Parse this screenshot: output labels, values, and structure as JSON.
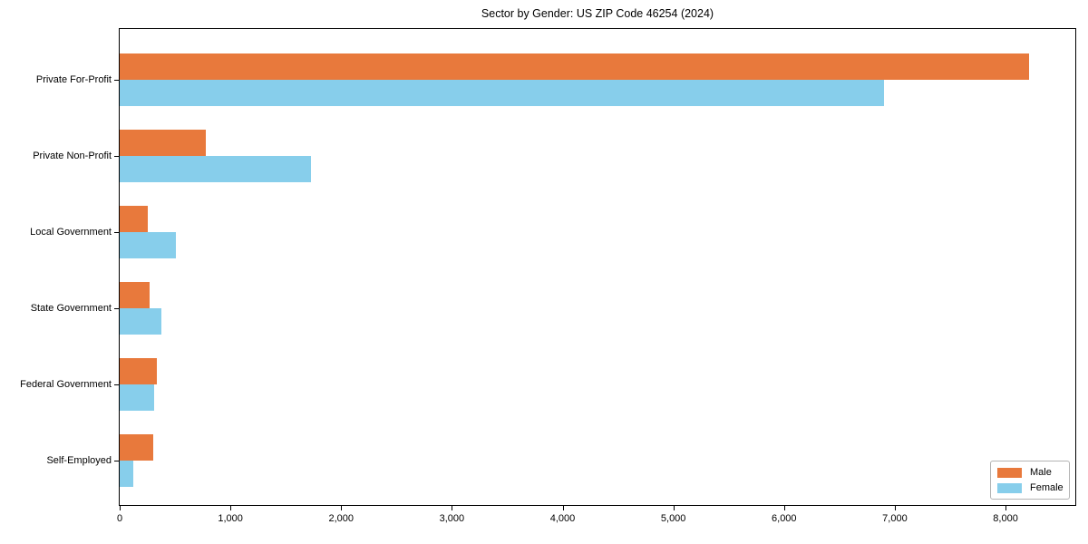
{
  "chart_data": {
    "type": "bar",
    "orientation": "horizontal",
    "title": "Sector by Gender: US ZIP Code 46254 (2024)",
    "categories": [
      "Private For-Profit",
      "Private Non-Profit",
      "Local Government",
      "State Government",
      "Federal Government",
      "Self-Employed"
    ],
    "series": [
      {
        "name": "Male",
        "color": "#E8793C",
        "values": [
          8210,
          780,
          250,
          270,
          335,
          300
        ]
      },
      {
        "name": "Female",
        "color": "#87CEEB",
        "values": [
          6900,
          1730,
          505,
          375,
          310,
          120
        ]
      }
    ],
    "xlabel": "",
    "ylabel": "",
    "xlim": [
      0,
      8630
    ],
    "xticks": [
      0,
      1000,
      2000,
      3000,
      4000,
      5000,
      6000,
      7000,
      8000
    ],
    "xtick_labels": [
      "0",
      "1,000",
      "2,000",
      "3,000",
      "4,000",
      "5,000",
      "6,000",
      "7,000",
      "8,000"
    ],
    "legend": {
      "position": "lower right",
      "entries": [
        "Male",
        "Female"
      ]
    },
    "grid": false
  }
}
